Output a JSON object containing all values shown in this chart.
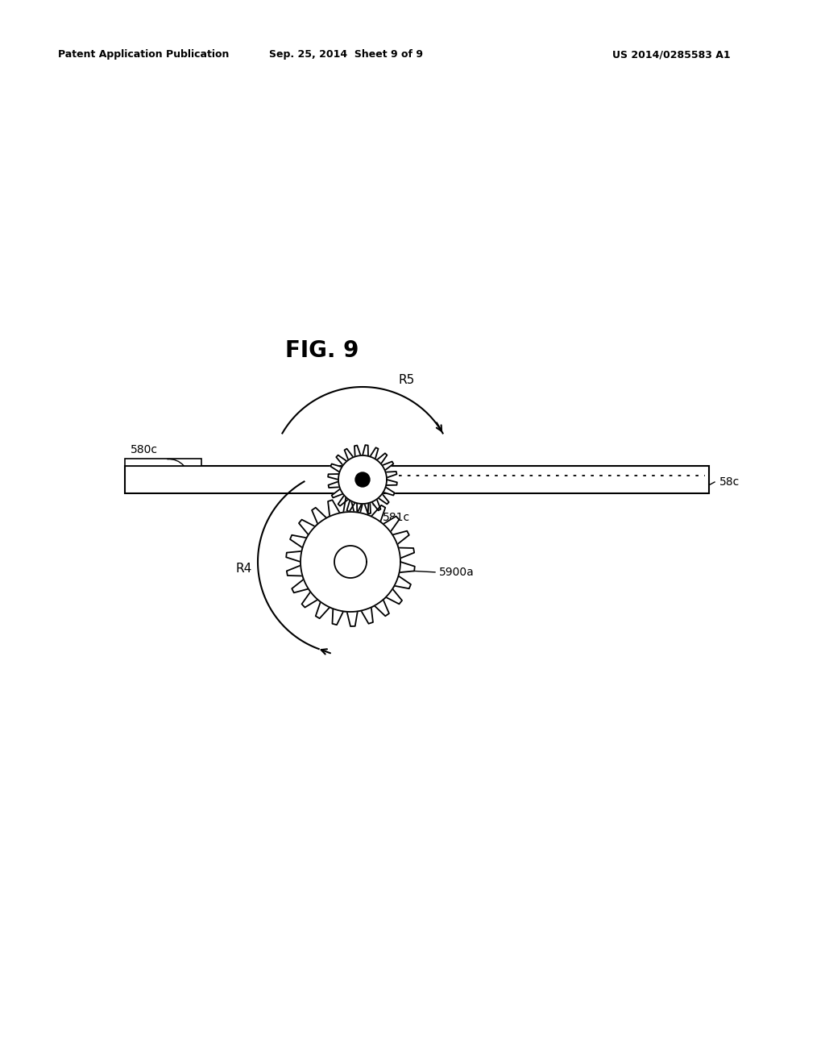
{
  "bg_color": "#ffffff",
  "header_left": "Patent Application Publication",
  "header_center": "Sep. 25, 2014  Sheet 9 of 9",
  "header_right": "US 2014/0285583 A1",
  "fig_label": "FIG. 9",
  "label_580c": "580c",
  "label_58c": "58c",
  "label_581c": "581c",
  "label_5900a": "5900a",
  "label_R5": "R5",
  "label_R4": "R4"
}
